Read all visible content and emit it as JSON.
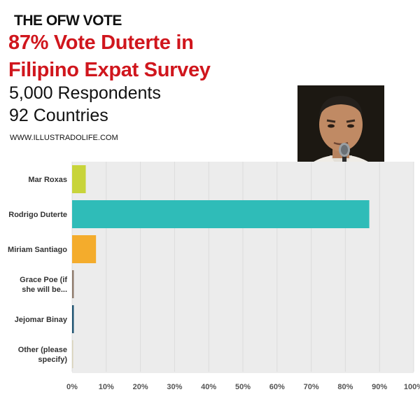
{
  "header": {
    "kicker": "THE OFW VOTE",
    "headline_line1": "87% Vote Duterte in",
    "headline_line2": "Filipino Expat Survey",
    "stat_respondents": "5,000 Respondents",
    "stat_countries": "92 Countries",
    "website": "WWW.ILLUSTRADOLIFE.COM"
  },
  "chart_data": {
    "type": "bar",
    "orientation": "horizontal",
    "categories": [
      "Mar Roxas",
      "Rodrigo Duterte",
      "Miriam Santiago",
      "Grace Poe (if she will be...",
      "Jejomar Binay",
      "Other (please specify)"
    ],
    "category_lines": [
      [
        "Mar Roxas"
      ],
      [
        "Rodrigo Duterte"
      ],
      [
        "Miriam Santiago"
      ],
      [
        "Grace Poe (if",
        "she will be..."
      ],
      [
        "Jejomar Binay"
      ],
      [
        "Other (please",
        "specify)"
      ]
    ],
    "values": [
      4,
      87,
      7,
      0.5,
      0.5,
      0.3
    ],
    "colors": [
      "#c8d43a",
      "#2fbcb8",
      "#f4ac2c",
      "#8e7a6b",
      "#1d5270",
      "#d8d2b8"
    ],
    "xlim": [
      0,
      100
    ],
    "xticks": [
      "0%",
      "10%",
      "20%",
      "30%",
      "40%",
      "50%",
      "60%",
      "70%",
      "80%",
      "90%",
      "100%"
    ],
    "grid": true
  }
}
